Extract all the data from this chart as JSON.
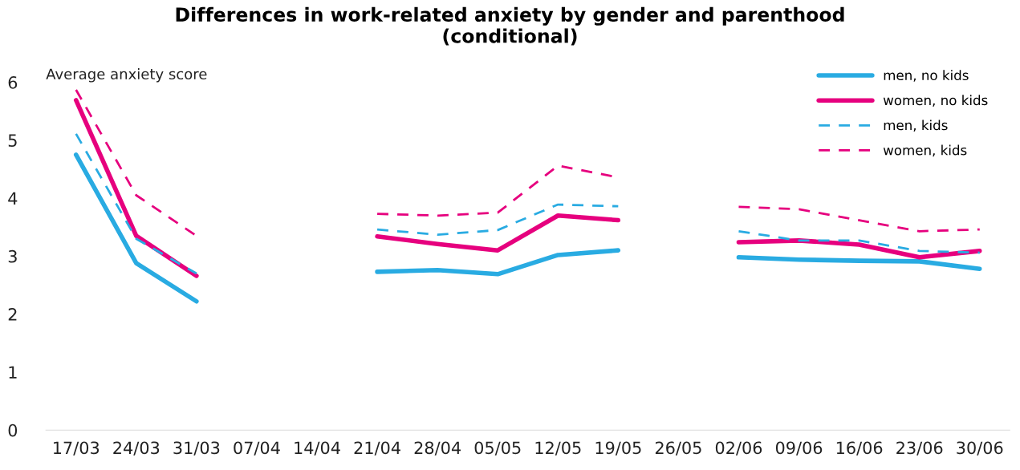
{
  "chart_data": {
    "type": "line",
    "title": "Differences in work-related anxiety by gender and parenthood\n(conditional)",
    "ylabel": "Average anxiety score",
    "categories": [
      "17/03",
      "24/03",
      "31/03",
      "07/04",
      "14/04",
      "21/04",
      "28/04",
      "05/05",
      "12/05",
      "19/05",
      "26/05",
      "02/06",
      "09/06",
      "16/06",
      "23/06",
      "30/06"
    ],
    "ylim": [
      0,
      6
    ],
    "yticks": [
      0,
      1,
      2,
      3,
      4,
      5,
      6
    ],
    "grid": false,
    "legend": "top right",
    "marker": "none",
    "series": [
      {
        "name": "men, no kids",
        "color": "#29abe2",
        "line_style": "solid",
        "values": [
          4.75,
          2.88,
          2.22,
          null,
          null,
          2.73,
          2.76,
          2.69,
          3.02,
          3.1,
          null,
          2.98,
          2.94,
          2.92,
          2.91,
          2.78
        ]
      },
      {
        "name": "women, no kids",
        "color": "#e6007e",
        "line_style": "solid",
        "values": [
          5.69,
          3.35,
          2.66,
          null,
          null,
          3.34,
          3.21,
          3.1,
          3.7,
          3.62,
          null,
          3.24,
          3.27,
          3.2,
          2.98,
          3.09
        ]
      },
      {
        "name": "men, kids",
        "color": "#29abe2",
        "line_style": "dashed",
        "values": [
          5.11,
          3.3,
          2.7,
          null,
          null,
          3.46,
          3.37,
          3.45,
          3.89,
          3.86,
          null,
          3.43,
          3.27,
          3.27,
          3.09,
          3.06
        ]
      },
      {
        "name": "women, kids",
        "color": "#e6007e",
        "line_style": "dashed",
        "values": [
          5.87,
          4.05,
          3.35,
          null,
          null,
          3.73,
          3.7,
          3.75,
          4.56,
          4.36,
          null,
          3.85,
          3.81,
          3.62,
          3.43,
          3.46
        ]
      }
    ]
  }
}
